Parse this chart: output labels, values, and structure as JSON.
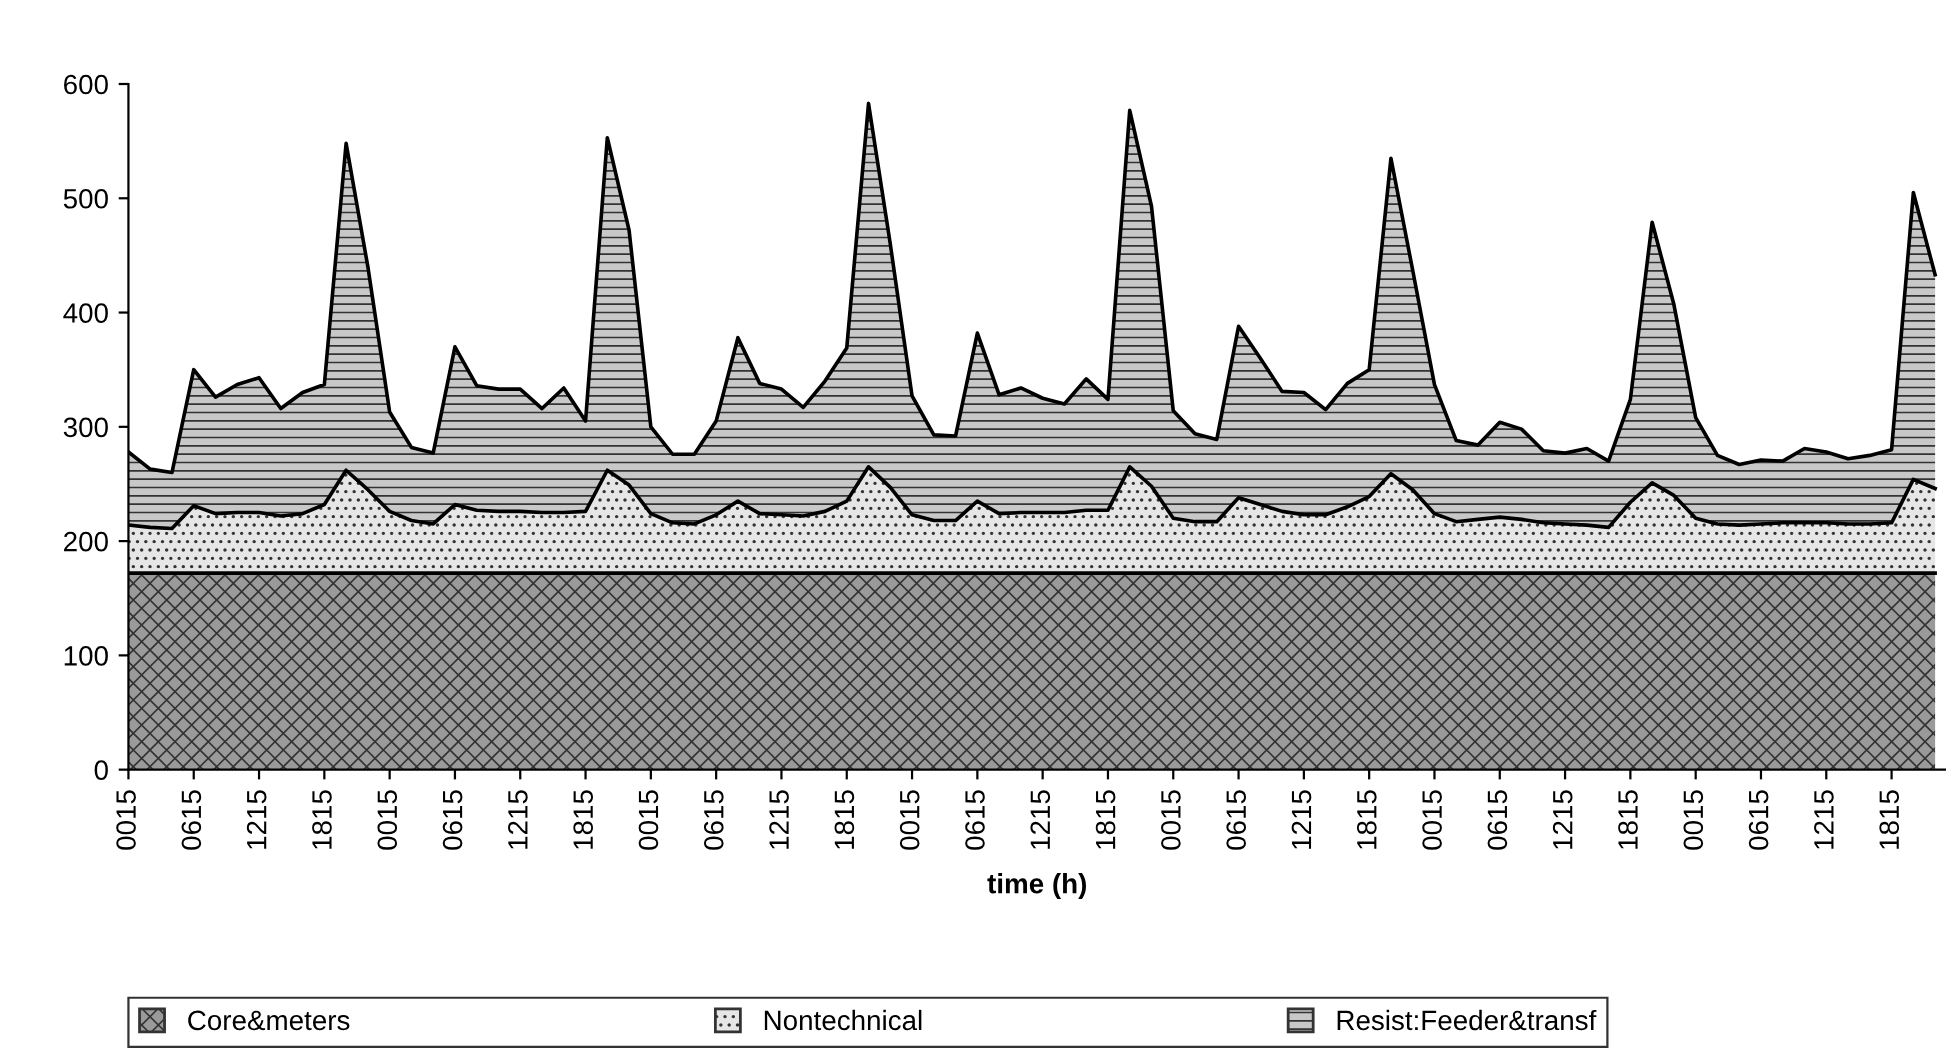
{
  "chart_data": {
    "type": "area",
    "stacked": true,
    "xlabel": "time (h)",
    "categories": [
      "0015",
      null,
      null,
      "0615",
      null,
      null,
      "1215",
      null,
      null,
      "1815",
      null,
      null,
      "0015",
      null,
      null,
      "0615",
      null,
      null,
      "1215",
      null,
      null,
      "1815",
      null,
      null,
      "0015",
      null,
      null,
      "0615",
      null,
      null,
      "1215",
      null,
      null,
      "1815",
      null,
      null,
      "0015",
      null,
      null,
      "0615",
      null,
      null,
      "1215",
      null,
      null,
      "1815",
      null,
      null,
      "0015",
      null,
      null,
      "0615",
      null,
      null,
      "1215",
      null,
      null,
      "1815",
      null,
      null,
      "0015",
      null,
      null,
      "0615",
      null,
      null,
      "1215",
      null,
      null,
      "1815",
      null,
      null,
      "0015",
      null,
      null,
      "0615",
      null,
      null,
      "1215",
      null,
      null,
      "1815",
      null,
      null
    ],
    "series": [
      {
        "name": "Core&meters",
        "color": "#9a9a9a",
        "values": [
          172,
          172,
          172,
          172,
          172,
          172,
          172,
          172,
          172,
          172,
          172,
          172,
          172,
          172,
          172,
          172,
          172,
          172,
          172,
          172,
          172,
          172,
          172,
          172,
          172,
          172,
          172,
          172,
          172,
          172,
          172,
          172,
          172,
          172,
          172,
          172,
          172,
          172,
          172,
          172,
          172,
          172,
          172,
          172,
          172,
          172,
          172,
          172,
          172,
          172,
          172,
          172,
          172,
          172,
          172,
          172,
          172,
          172,
          172,
          172,
          172,
          172,
          172,
          172,
          172,
          172,
          172,
          172,
          172,
          172,
          172,
          172,
          172,
          172,
          172,
          172,
          172,
          172,
          172,
          172,
          172,
          172,
          172,
          172
        ]
      },
      {
        "name": "Nontechnical",
        "color": "#e6e6e6",
        "values": [
          42,
          40,
          39,
          59,
          52,
          53,
          53,
          50,
          52,
          60,
          90,
          73,
          54,
          46,
          43,
          60,
          55,
          54,
          54,
          53,
          53,
          54,
          90,
          77,
          52,
          44,
          43,
          51,
          63,
          52,
          51,
          50,
          54,
          63,
          93,
          75,
          51,
          46,
          46,
          63,
          52,
          53,
          53,
          53,
          55,
          55,
          93,
          76,
          48,
          45,
          45,
          66,
          60,
          54,
          51,
          51,
          58,
          67,
          87,
          73,
          52,
          45,
          47,
          49,
          47,
          44,
          43,
          42,
          40,
          62,
          79,
          68,
          48,
          43,
          42,
          43,
          44,
          44,
          44,
          43,
          43,
          44,
          82,
          74
        ]
      },
      {
        "name": "Resist:Feeder&transf",
        "color": "#c8c8c8",
        "values": [
          64,
          51,
          49,
          119,
          102,
          112,
          118,
          94,
          106,
          105,
          286,
          195,
          87,
          64,
          62,
          138,
          109,
          107,
          107,
          91,
          109,
          79,
          291,
          223,
          76,
          60,
          61,
          82,
          143,
          114,
          110,
          95,
          114,
          134,
          318,
          213,
          104,
          75,
          74,
          147,
          104,
          109,
          100,
          95,
          115,
          97,
          312,
          245,
          94,
          77,
          72,
          150,
          128,
          105,
          107,
          92,
          108,
          111,
          276,
          192,
          113,
          71,
          65,
          83,
          79,
          63,
          62,
          67,
          58,
          90,
          228,
          167,
          88,
          60,
          53,
          56,
          54,
          65,
          62,
          57,
          60,
          64,
          251,
          187
        ]
      }
    ],
    "ylim": [
      0,
      600
    ],
    "yticks": [
      0,
      100,
      200,
      300,
      400,
      500,
      600
    ],
    "grid": false,
    "legend": "bottom"
  }
}
